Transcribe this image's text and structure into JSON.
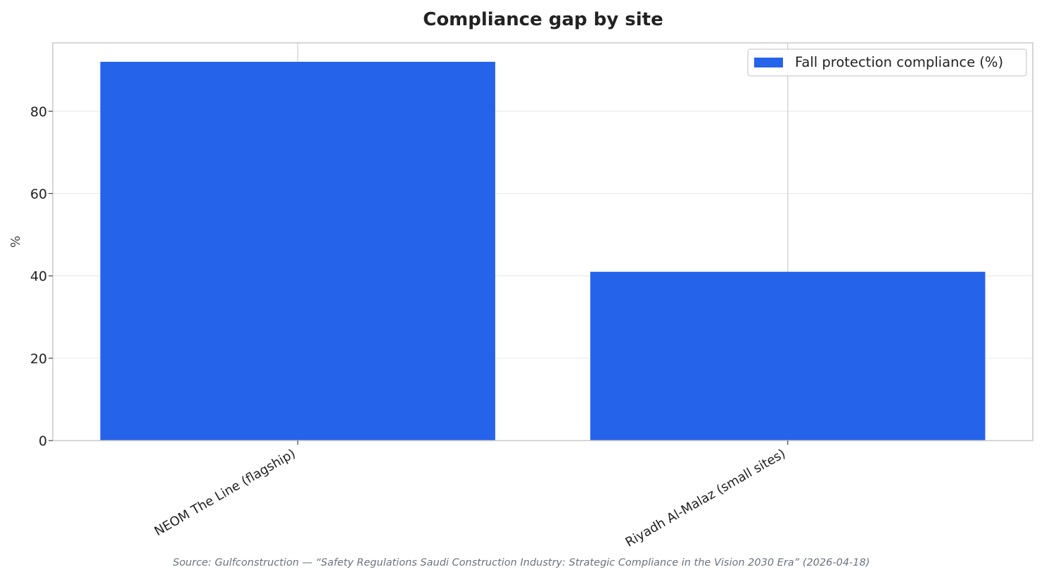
{
  "chart_data": {
    "type": "bar",
    "title": "Compliance gap by site",
    "xlabel": "",
    "ylabel": "%",
    "categories": [
      "NEOM The Line (flagship)",
      "Riyadh Al-Malaz (small sites)"
    ],
    "series": [
      {
        "name": "Fall protection compliance (%)",
        "values": [
          92,
          41
        ],
        "color": "#2563eb"
      }
    ],
    "ylim": [
      0,
      96.6
    ],
    "yticks": [
      "0",
      "20",
      "40",
      "60",
      "80"
    ],
    "grid": true,
    "legend_position": "upper right",
    "source": "Source: Gulfconstruction — “Safety Regulations Saudi Construction Industry: Strategic Compliance in the Vision 2030 Era” (2026-04-18)"
  }
}
